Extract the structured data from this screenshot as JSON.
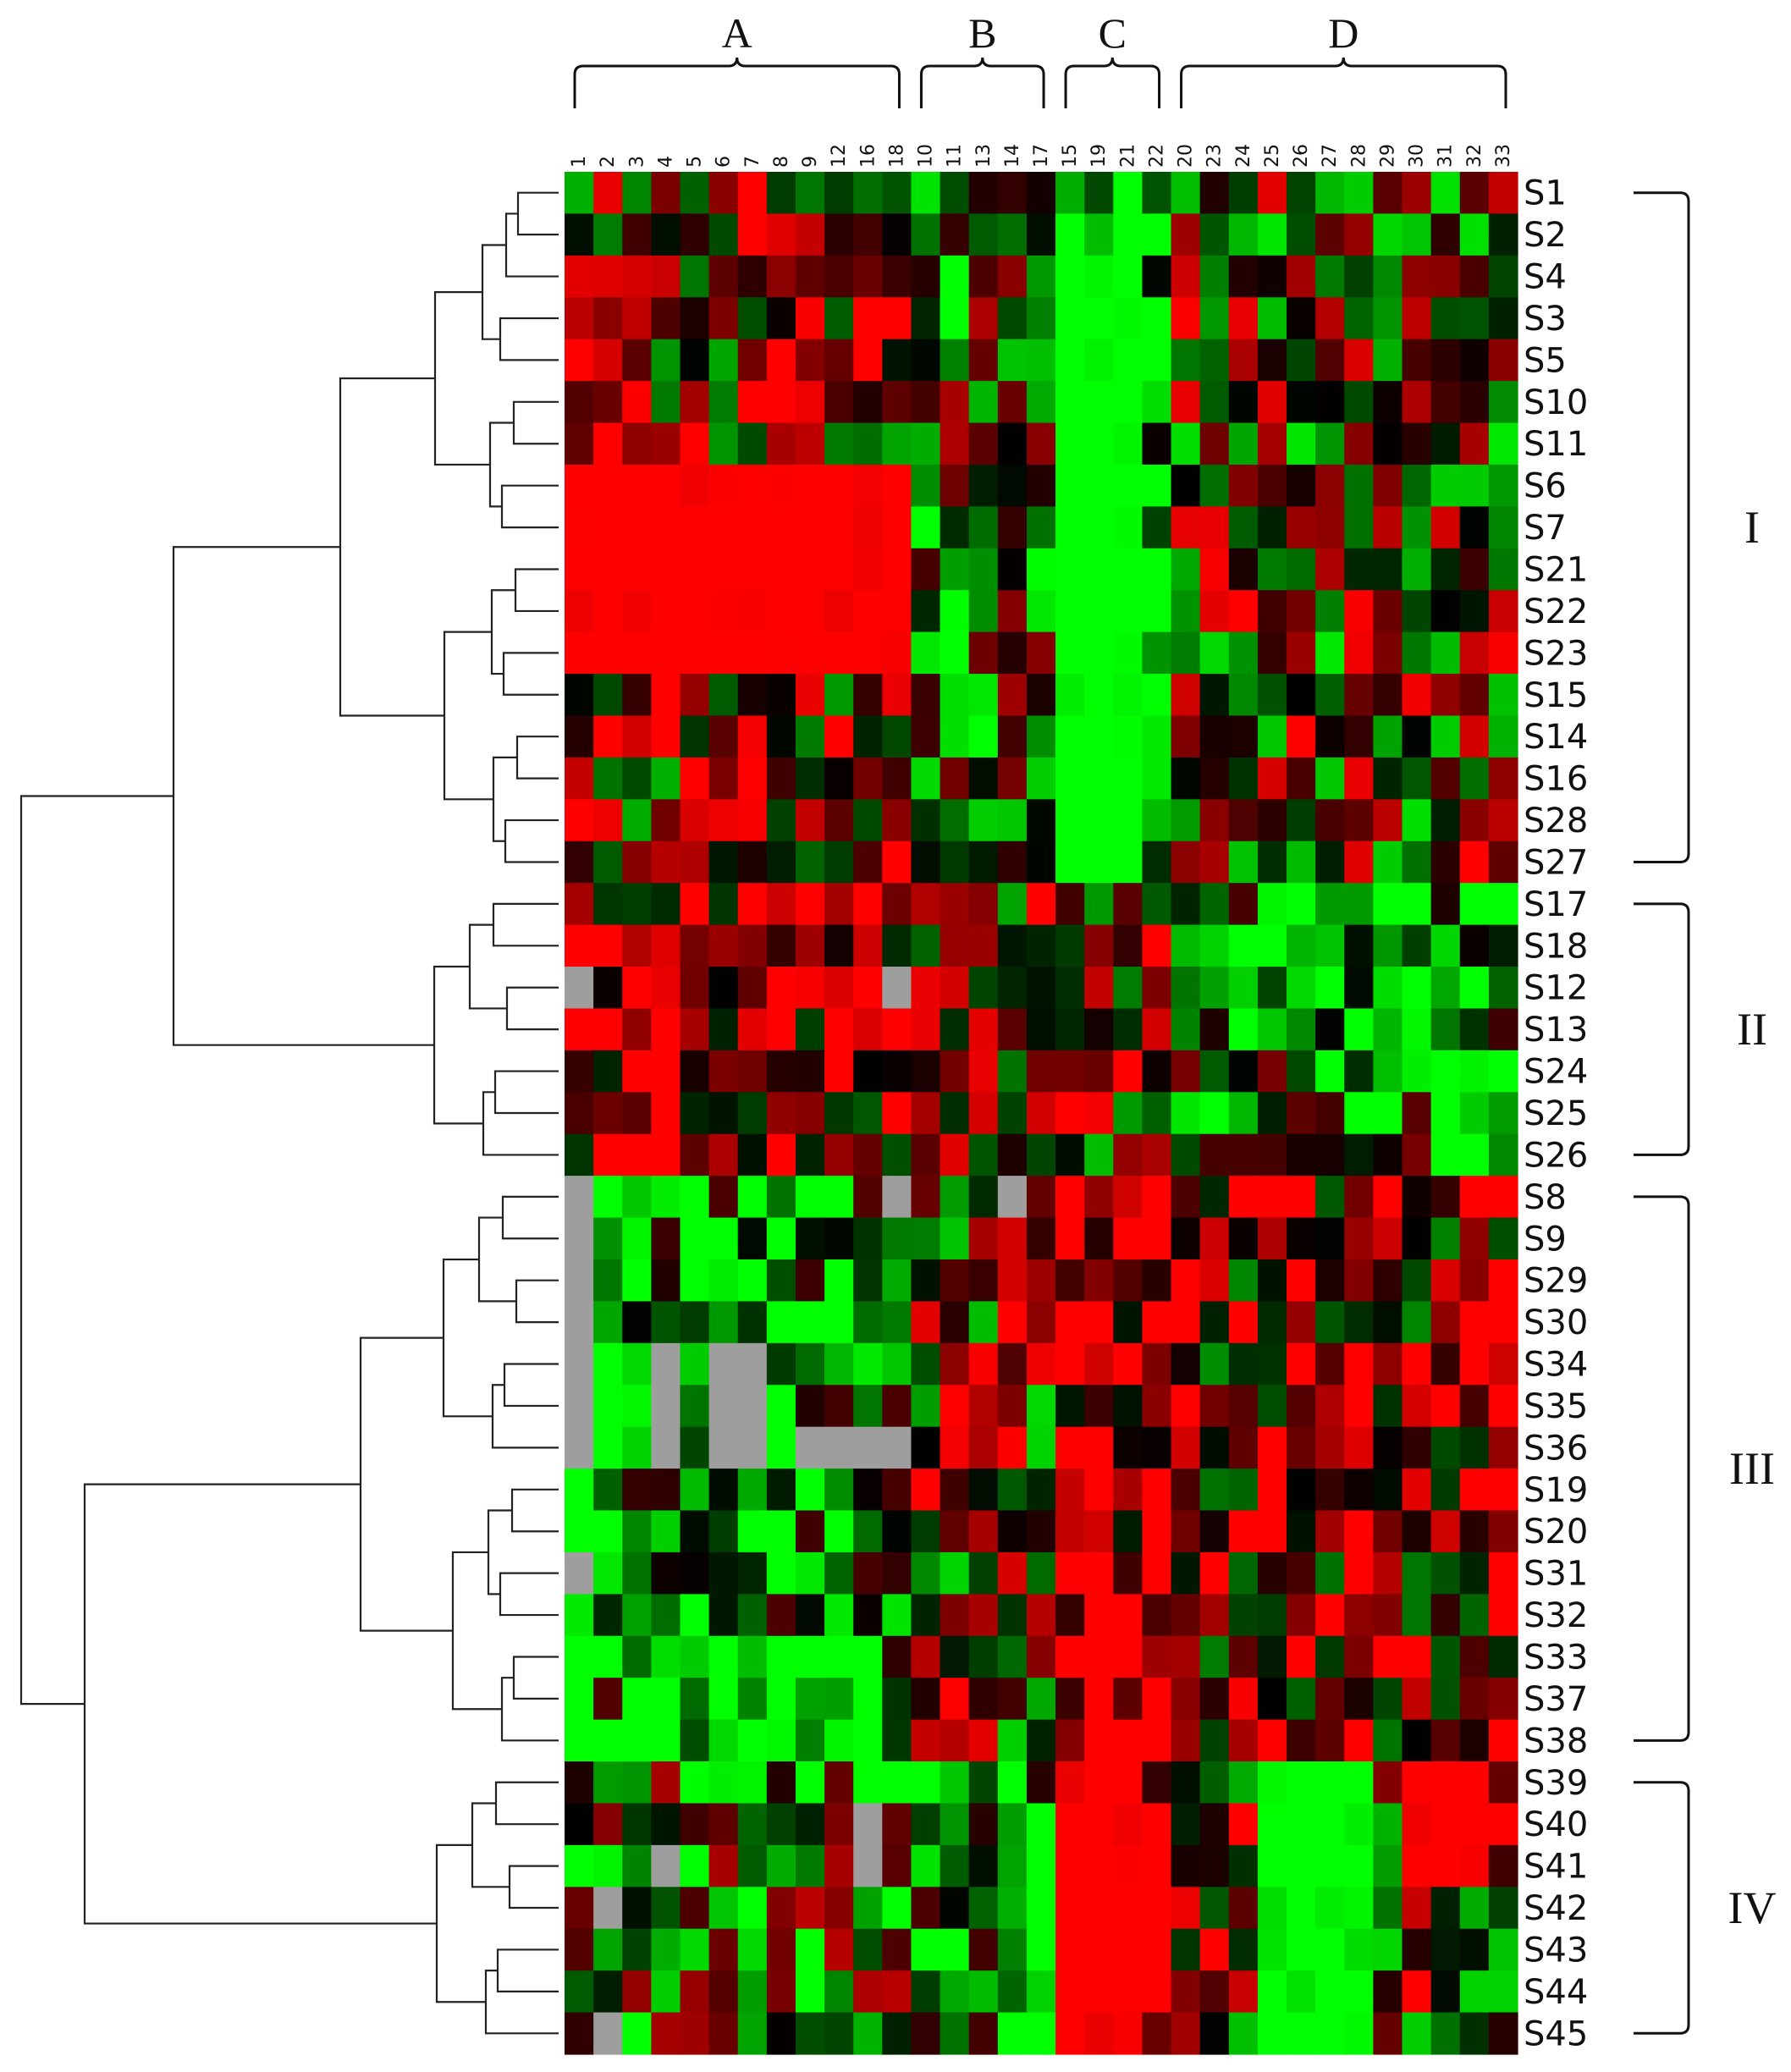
{
  "chart_data": {
    "type": "heatmap",
    "title": "",
    "xlabel": "",
    "ylabel": "",
    "color_scale": {
      "low": "#00ff00",
      "mid": "#000000",
      "high": "#ff0000",
      "missing": "#9e9e9e"
    },
    "columns": [
      "1",
      "2",
      "3",
      "4",
      "5",
      "6",
      "7",
      "8",
      "9",
      "12",
      "16",
      "18",
      "10",
      "11",
      "13",
      "14",
      "17",
      "15",
      "19",
      "21",
      "22",
      "20",
      "23",
      "24",
      "25",
      "26",
      "27",
      "28",
      "29",
      "30",
      "31",
      "32",
      "33"
    ],
    "column_groups": [
      {
        "label": "A",
        "start": 0,
        "end": 11
      },
      {
        "label": "B",
        "start": 12,
        "end": 16
      },
      {
        "label": "C",
        "start": 17,
        "end": 20
      },
      {
        "label": "D",
        "start": 21,
        "end": 32
      }
    ],
    "rows": [
      "S1",
      "S2",
      "S4",
      "S3",
      "S5",
      "S10",
      "S11",
      "S6",
      "S7",
      "S21",
      "S22",
      "S23",
      "S15",
      "S14",
      "S16",
      "S28",
      "S27",
      "S17",
      "S18",
      "S12",
      "S13",
      "S24",
      "S25",
      "S26",
      "S8",
      "S9",
      "S29",
      "S30",
      "S34",
      "S35",
      "S36",
      "S19",
      "S20",
      "S31",
      "S32",
      "S33",
      "S37",
      "S38",
      "S39",
      "S40",
      "S41",
      "S42",
      "S43",
      "S44",
      "S45"
    ],
    "row_clusters": [
      {
        "label": "I",
        "start": 0,
        "end": 16
      },
      {
        "label": "II",
        "start": 17,
        "end": 23
      },
      {
        "label": "III",
        "start": 24,
        "end": 37
      },
      {
        "label": "IV",
        "start": 38,
        "end": 44
      }
    ],
    "group_profile": [
      {
        "cluster": "I",
        "A": 0.25,
        "B": -0.2,
        "C": -0.8,
        "D": 0.05
      },
      {
        "cluster": "II",
        "A": 0.55,
        "B": 0.2,
        "C": 0.1,
        "D": -0.35
      },
      {
        "cluster": "III",
        "A": -0.55,
        "B": 0.1,
        "C": 0.75,
        "D": 0.35
      },
      {
        "cluster": "IV",
        "A": -0.2,
        "B": -0.55,
        "C": 0.95,
        "D": 0.1
      }
    ],
    "block_overrides": [
      {
        "rows": [
          7,
          11
        ],
        "cols": [
          0,
          11
        ],
        "value": 0.95
      },
      {
        "rows": [
          2,
          16
        ],
        "cols": [
          17,
          19
        ],
        "value": -0.95
      },
      {
        "rows": [
          38,
          44
        ],
        "cols": [
          17,
          19
        ],
        "value": 0.95
      },
      {
        "rows": [
          38,
          44
        ],
        "cols": [
          24,
          27
        ],
        "value": -0.9
      },
      {
        "rows": [
          38,
          40
        ],
        "cols": [
          29,
          31
        ],
        "value": 0.9
      }
    ],
    "missing_cells": [
      [
        19,
        0
      ],
      [
        19,
        11
      ],
      [
        24,
        0
      ],
      [
        25,
        0
      ],
      [
        24,
        11
      ],
      [
        24,
        15
      ],
      [
        26,
        0
      ],
      [
        27,
        0
      ],
      [
        28,
        0
      ],
      [
        29,
        0
      ],
      [
        30,
        0
      ],
      [
        28,
        3
      ],
      [
        29,
        3
      ],
      [
        30,
        3
      ],
      [
        28,
        5
      ],
      [
        29,
        5
      ],
      [
        30,
        5
      ],
      [
        28,
        6
      ],
      [
        29,
        6
      ],
      [
        30,
        6
      ],
      [
        30,
        8
      ],
      [
        30,
        9
      ],
      [
        30,
        10
      ],
      [
        30,
        11
      ],
      [
        39,
        10
      ],
      [
        40,
        10
      ],
      [
        40,
        3
      ],
      [
        41,
        1
      ],
      [
        44,
        1
      ],
      [
        33,
        0
      ]
    ],
    "tree_order_dendrogram": true,
    "grid": false,
    "legend": "none"
  }
}
